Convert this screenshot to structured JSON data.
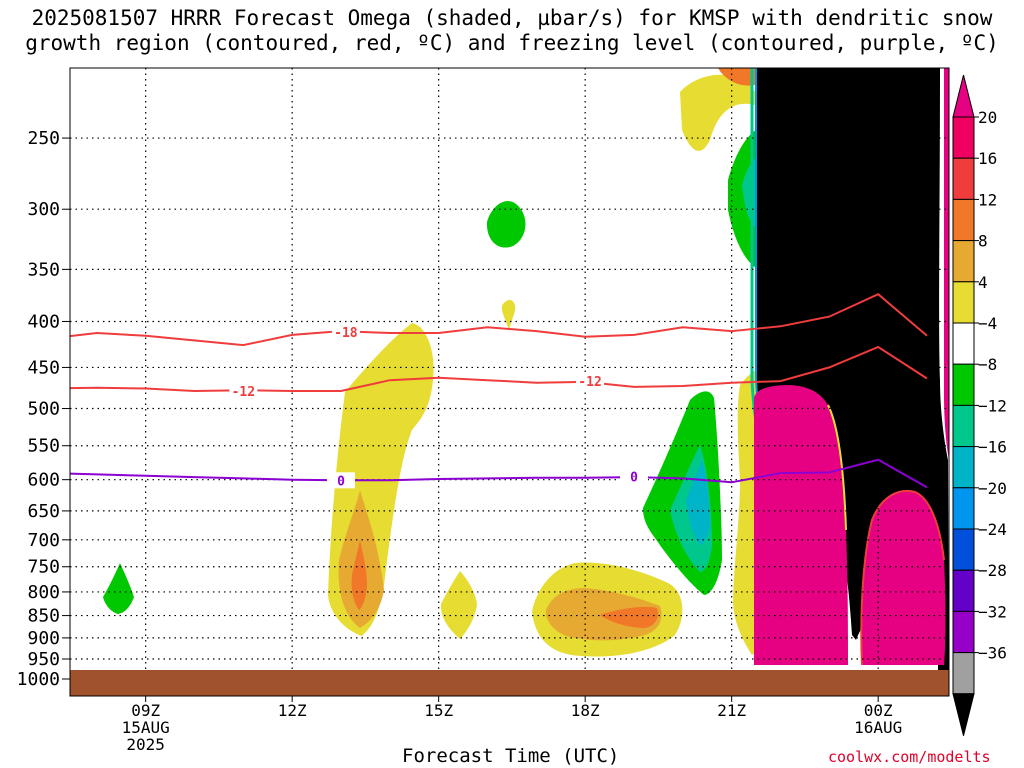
{
  "title_line1": "2025081507 HRRR Forecast Omega (shaded, µbar/s) for KMSP with dendritic snow",
  "title_line2": "growth region (contoured, red, ºC) and freezing level (contoured, purple, ºC)",
  "credit": "coolwx.com/modelts",
  "chart_data": {
    "type": "heatmap",
    "title": "2025081507 HRRR Forecast Omega (shaded, µbar/s) for KMSP with dendritic snow growth region (contoured, red, ºC) and freezing level (contoured, purple, ºC)",
    "xlabel": "Forecast Time (UTC)",
    "ylabel": "",
    "x_range_hours": [
      7,
      25
    ],
    "y_range_hpa": [
      200,
      1000
    ],
    "y_scale": "log-pressure",
    "y_ticks": [
      250,
      300,
      350,
      400,
      450,
      500,
      550,
      600,
      650,
      700,
      750,
      800,
      850,
      900,
      950,
      1000
    ],
    "x_ticks": [
      {
        "hour": 9,
        "lines": [
          "09Z",
          "15AUG",
          "2025"
        ]
      },
      {
        "hour": 12,
        "lines": [
          "12Z"
        ]
      },
      {
        "hour": 15,
        "lines": [
          "15Z"
        ]
      },
      {
        "hour": 18,
        "lines": [
          "18Z"
        ]
      },
      {
        "hour": 21,
        "lines": [
          "21Z"
        ]
      },
      {
        "hour": 24,
        "lines": [
          "00Z",
          "16AUG"
        ]
      }
    ],
    "grid": true,
    "colorbar": {
      "labels": [
        "20",
        "16",
        "12",
        "8",
        "4",
        "−4",
        "−8",
        "−12",
        "−16",
        "−20",
        "−24",
        "−28",
        "−32",
        "−36"
      ],
      "colors": [
        "#f00060",
        "#f03c3c",
        "#f07828",
        "#e6aa32",
        "#e6dc32",
        "#ffffff",
        "#00c800",
        "#00c88c",
        "#00b4c8",
        "#0096f0",
        "#0050dc",
        "#6400c8",
        "#9600c8",
        "#a0a0a0"
      ],
      "top_cap_color": "#e60082",
      "bottom_cap_color": "#000000"
    },
    "contours": [
      {
        "label": "-18",
        "color": "#f03c3c",
        "points": [
          [
            7,
            418
          ],
          [
            8,
            412
          ],
          [
            9,
            415
          ],
          [
            11,
            425
          ],
          [
            12,
            414
          ],
          [
            13,
            410
          ],
          [
            14,
            412
          ],
          [
            15,
            412
          ],
          [
            16,
            406
          ],
          [
            17,
            410
          ],
          [
            18,
            416
          ],
          [
            19,
            414
          ],
          [
            20,
            406
          ],
          [
            21,
            410
          ],
          [
            22,
            405
          ],
          [
            23,
            395
          ],
          [
            24,
            373
          ],
          [
            25,
            415
          ]
        ],
        "label_at": [
          13.1,
          411
        ]
      },
      {
        "label": "-12",
        "color": "#f03c3c",
        "points": [
          [
            7,
            475
          ],
          [
            8,
            474
          ],
          [
            9,
            475
          ],
          [
            10,
            478
          ],
          [
            11,
            477
          ],
          [
            12,
            478
          ],
          [
            13,
            478
          ],
          [
            14,
            465
          ],
          [
            15,
            462
          ],
          [
            16,
            465
          ],
          [
            17,
            468
          ],
          [
            18,
            467
          ],
          [
            19,
            473
          ],
          [
            20,
            472
          ],
          [
            21,
            468
          ],
          [
            22,
            466
          ],
          [
            23,
            450
          ],
          [
            24,
            427
          ],
          [
            25,
            463
          ]
        ],
        "label_at": [
          11,
          478
        ],
        "label_at2": [
          18.1,
          466
        ]
      },
      {
        "label": "0",
        "color": "#8c00d2",
        "points": [
          [
            7,
            590
          ],
          [
            8,
            592
          ],
          [
            9,
            594
          ],
          [
            10,
            596
          ],
          [
            11,
            598
          ],
          [
            12,
            600
          ],
          [
            13,
            601
          ],
          [
            14,
            601
          ],
          [
            15,
            599
          ],
          [
            16,
            598
          ],
          [
            17,
            597
          ],
          [
            18,
            597
          ],
          [
            19,
            596
          ],
          [
            20,
            598
          ],
          [
            21,
            604
          ],
          [
            22,
            590
          ],
          [
            23,
            589
          ],
          [
            24,
            570
          ],
          [
            25,
            612
          ]
        ],
        "label_at": [
          13,
          601
        ],
        "label_at2": [
          19,
          595
        ]
      }
    ]
  }
}
